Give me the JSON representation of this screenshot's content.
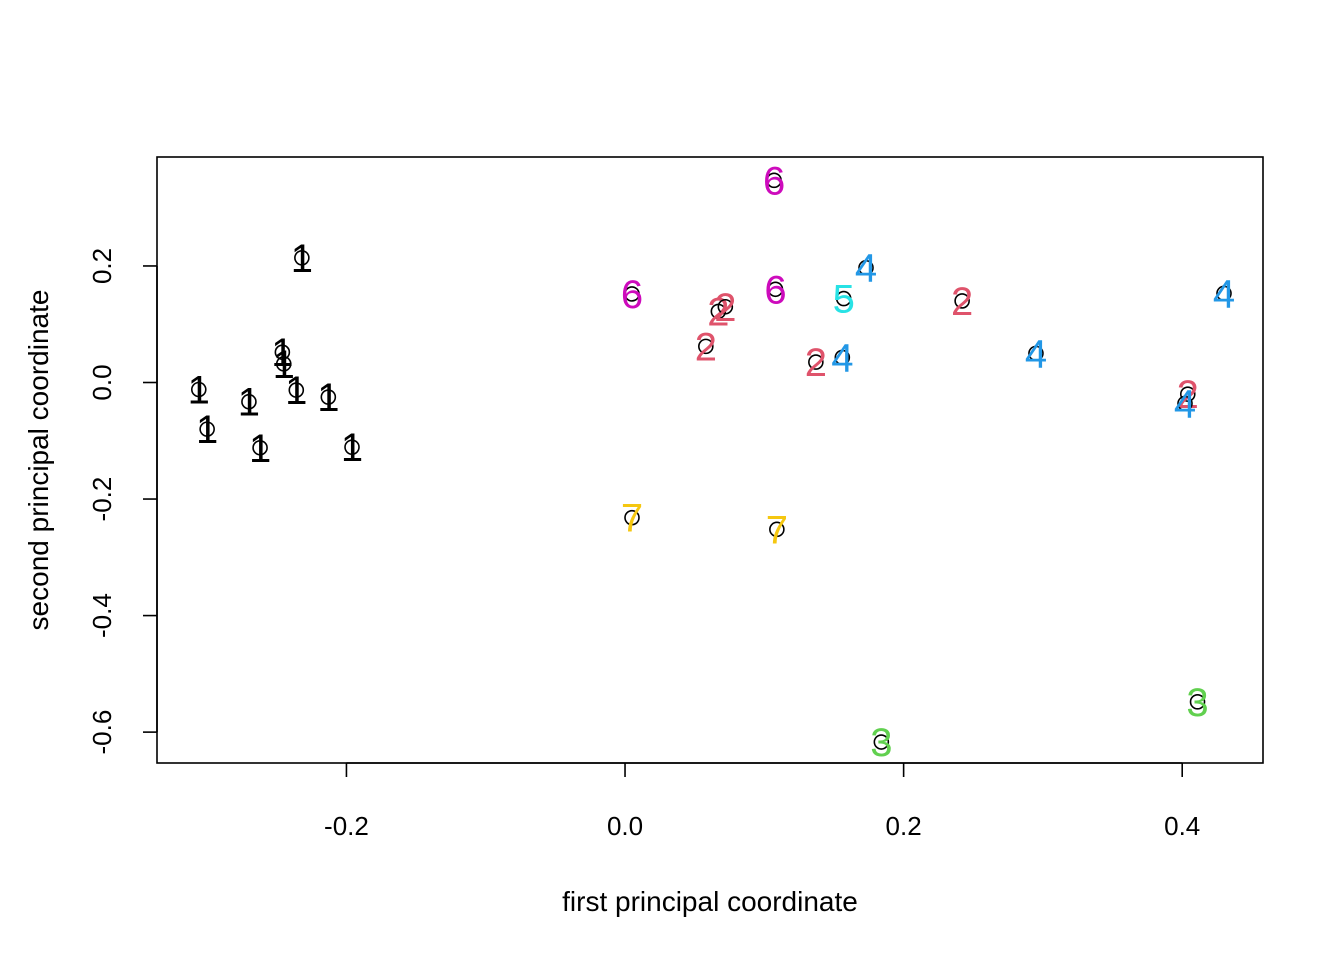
{
  "chart_data": {
    "type": "scatter",
    "title": "",
    "xlabel": "first principal coordinate",
    "ylabel": "second principal coordinate",
    "xlim": [
      -0.336,
      0.458
    ],
    "ylim": [
      -0.653,
      0.387
    ],
    "xticks": [
      -0.2,
      0.0,
      0.2,
      0.4
    ],
    "xtick_labels": [
      "-0.2",
      "0.0",
      "0.2",
      "0.4"
    ],
    "yticks": [
      -0.6,
      -0.4,
      -0.2,
      0.0,
      0.2
    ],
    "ytick_labels": [
      "-0.6",
      "-0.4",
      "-0.2",
      "0.0",
      "0.2"
    ],
    "group_colors": {
      "1": "#000000",
      "2": "#DF536B",
      "3": "#61D04F",
      "4": "#2297E6",
      "5": "#28E2E5",
      "6": "#CD0BBC",
      "7": "#F5C710"
    },
    "points": [
      {
        "x": -0.306,
        "y": -0.012,
        "group": "1"
      },
      {
        "x": -0.3,
        "y": -0.08,
        "group": "1"
      },
      {
        "x": -0.27,
        "y": -0.033,
        "group": "1"
      },
      {
        "x": -0.262,
        "y": -0.112,
        "group": "1"
      },
      {
        "x": -0.246,
        "y": 0.052,
        "group": "1"
      },
      {
        "x": -0.245,
        "y": 0.032,
        "group": "1"
      },
      {
        "x": -0.236,
        "y": -0.013,
        "group": "1"
      },
      {
        "x": -0.232,
        "y": 0.214,
        "group": "1"
      },
      {
        "x": -0.213,
        "y": -0.025,
        "group": "1"
      },
      {
        "x": -0.196,
        "y": -0.111,
        "group": "1"
      },
      {
        "x": 0.005,
        "y": 0.152,
        "group": "6"
      },
      {
        "x": 0.005,
        "y": -0.232,
        "group": "7"
      },
      {
        "x": 0.058,
        "y": 0.062,
        "group": "2"
      },
      {
        "x": 0.067,
        "y": 0.122,
        "group": "2"
      },
      {
        "x": 0.072,
        "y": 0.13,
        "group": "2"
      },
      {
        "x": 0.107,
        "y": 0.347,
        "group": "6"
      },
      {
        "x": 0.108,
        "y": 0.16,
        "group": "6"
      },
      {
        "x": 0.109,
        "y": -0.252,
        "group": "7"
      },
      {
        "x": 0.137,
        "y": 0.035,
        "group": "2"
      },
      {
        "x": 0.156,
        "y": 0.043,
        "group": "4"
      },
      {
        "x": 0.157,
        "y": 0.144,
        "group": "5"
      },
      {
        "x": 0.173,
        "y": 0.197,
        "group": "4"
      },
      {
        "x": 0.184,
        "y": -0.617,
        "group": "3"
      },
      {
        "x": 0.242,
        "y": 0.14,
        "group": "2"
      },
      {
        "x": 0.295,
        "y": 0.05,
        "group": "4"
      },
      {
        "x": 0.404,
        "y": -0.02,
        "group": "2"
      },
      {
        "x": 0.402,
        "y": -0.036,
        "group": "4"
      },
      {
        "x": 0.411,
        "y": -0.548,
        "group": "3"
      },
      {
        "x": 0.43,
        "y": 0.153,
        "group": "4"
      }
    ]
  }
}
